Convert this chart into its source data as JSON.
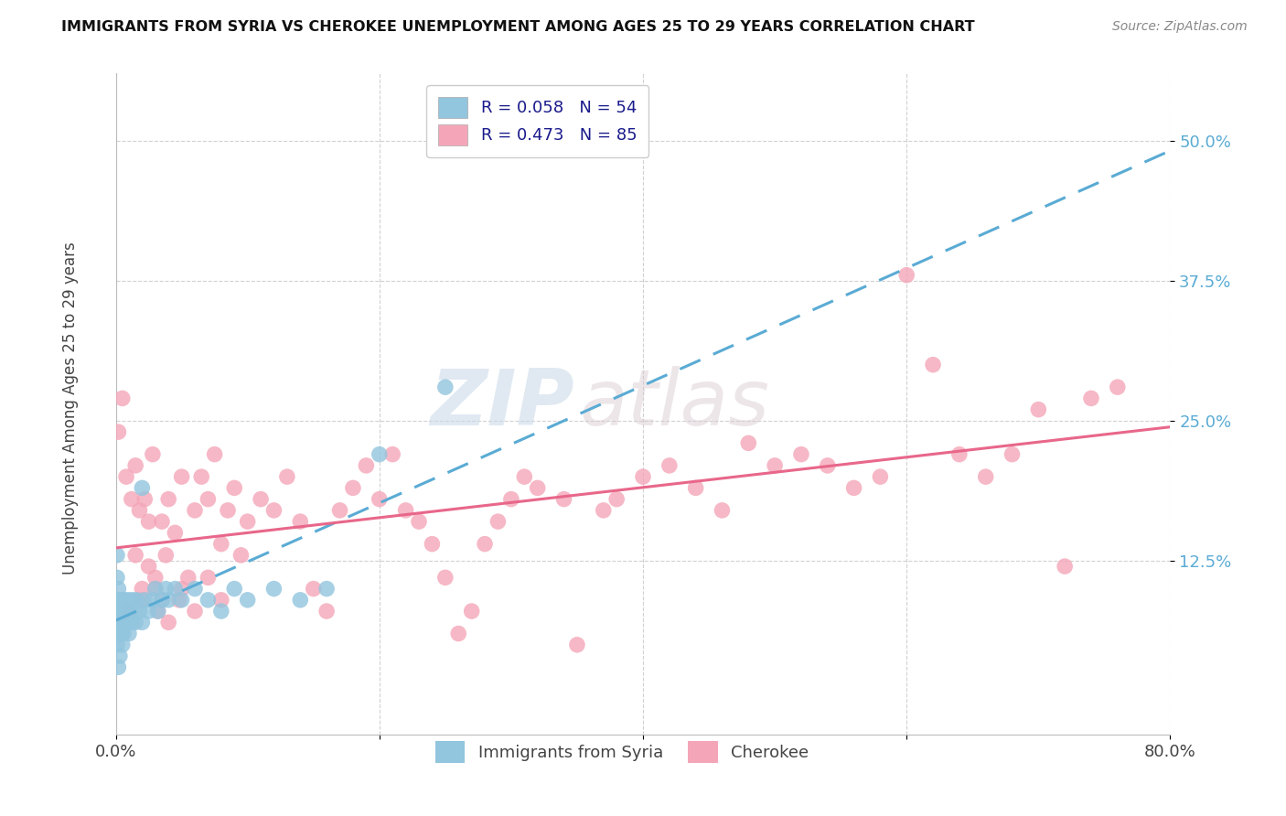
{
  "title": "IMMIGRANTS FROM SYRIA VS CHEROKEE UNEMPLOYMENT AMONG AGES 25 TO 29 YEARS CORRELATION CHART",
  "source": "Source: ZipAtlas.com",
  "ylabel": "Unemployment Among Ages 25 to 29 years",
  "legend_label1": "Immigrants from Syria",
  "legend_label2": "Cherokee",
  "R1": 0.058,
  "N1": 54,
  "R2": 0.473,
  "N2": 85,
  "color1": "#92c5de",
  "color2": "#f4a6b8",
  "line_color1": "#5aabd4",
  "line_color2": "#e8678a",
  "xmin": 0.0,
  "xmax": 0.8,
  "ymin": -0.03,
  "ymax": 0.56,
  "ytick_labels": [
    "12.5%",
    "25.0%",
    "37.5%",
    "50.0%"
  ],
  "ytick_vals": [
    0.125,
    0.25,
    0.375,
    0.5
  ],
  "background_color": "#ffffff",
  "watermark_zip": "ZIP",
  "watermark_atlas": "atlas",
  "syria_x": [
    0.001,
    0.001,
    0.001,
    0.001,
    0.001,
    0.002,
    0.002,
    0.002,
    0.002,
    0.003,
    0.003,
    0.003,
    0.004,
    0.004,
    0.005,
    0.005,
    0.005,
    0.006,
    0.006,
    0.007,
    0.007,
    0.008,
    0.009,
    0.01,
    0.01,
    0.011,
    0.012,
    0.013,
    0.014,
    0.015,
    0.016,
    0.018,
    0.02,
    0.022,
    0.025,
    0.028,
    0.03,
    0.032,
    0.035,
    0.038,
    0.04,
    0.045,
    0.05,
    0.06,
    0.07,
    0.08,
    0.09,
    0.1,
    0.12,
    0.14,
    0.16,
    0.2,
    0.25,
    0.02
  ],
  "syria_y": [
    0.05,
    0.07,
    0.09,
    0.11,
    0.13,
    0.06,
    0.08,
    0.1,
    0.03,
    0.07,
    0.09,
    0.04,
    0.08,
    0.06,
    0.07,
    0.09,
    0.05,
    0.08,
    0.06,
    0.07,
    0.09,
    0.08,
    0.07,
    0.09,
    0.06,
    0.08,
    0.07,
    0.09,
    0.08,
    0.07,
    0.09,
    0.08,
    0.07,
    0.09,
    0.08,
    0.09,
    0.1,
    0.08,
    0.09,
    0.1,
    0.09,
    0.1,
    0.09,
    0.1,
    0.09,
    0.08,
    0.1,
    0.09,
    0.1,
    0.09,
    0.1,
    0.22,
    0.28,
    0.19
  ],
  "cherokee_x": [
    0.002,
    0.005,
    0.008,
    0.01,
    0.012,
    0.015,
    0.018,
    0.02,
    0.022,
    0.025,
    0.028,
    0.03,
    0.032,
    0.035,
    0.038,
    0.04,
    0.045,
    0.048,
    0.05,
    0.055,
    0.06,
    0.065,
    0.07,
    0.075,
    0.08,
    0.085,
    0.09,
    0.095,
    0.1,
    0.11,
    0.12,
    0.13,
    0.14,
    0.15,
    0.16,
    0.17,
    0.18,
    0.19,
    0.2,
    0.21,
    0.22,
    0.23,
    0.24,
    0.25,
    0.26,
    0.27,
    0.28,
    0.29,
    0.3,
    0.31,
    0.32,
    0.34,
    0.35,
    0.37,
    0.38,
    0.4,
    0.42,
    0.44,
    0.46,
    0.48,
    0.5,
    0.52,
    0.54,
    0.56,
    0.58,
    0.6,
    0.62,
    0.64,
    0.66,
    0.68,
    0.7,
    0.72,
    0.74,
    0.76,
    0.01,
    0.015,
    0.02,
    0.025,
    0.03,
    0.035,
    0.04,
    0.05,
    0.06,
    0.07,
    0.08
  ],
  "cherokee_y": [
    0.24,
    0.27,
    0.2,
    0.08,
    0.18,
    0.21,
    0.17,
    0.09,
    0.18,
    0.16,
    0.22,
    0.1,
    0.08,
    0.16,
    0.13,
    0.18,
    0.15,
    0.09,
    0.2,
    0.11,
    0.17,
    0.2,
    0.18,
    0.22,
    0.14,
    0.17,
    0.19,
    0.13,
    0.16,
    0.18,
    0.17,
    0.2,
    0.16,
    0.1,
    0.08,
    0.17,
    0.19,
    0.21,
    0.18,
    0.22,
    0.17,
    0.16,
    0.14,
    0.11,
    0.06,
    0.08,
    0.14,
    0.16,
    0.18,
    0.2,
    0.19,
    0.18,
    0.05,
    0.17,
    0.18,
    0.2,
    0.21,
    0.19,
    0.17,
    0.23,
    0.21,
    0.22,
    0.21,
    0.19,
    0.2,
    0.38,
    0.3,
    0.22,
    0.2,
    0.22,
    0.26,
    0.12,
    0.27,
    0.28,
    0.08,
    0.13,
    0.1,
    0.12,
    0.11,
    0.09,
    0.07,
    0.1,
    0.08,
    0.11,
    0.09
  ]
}
